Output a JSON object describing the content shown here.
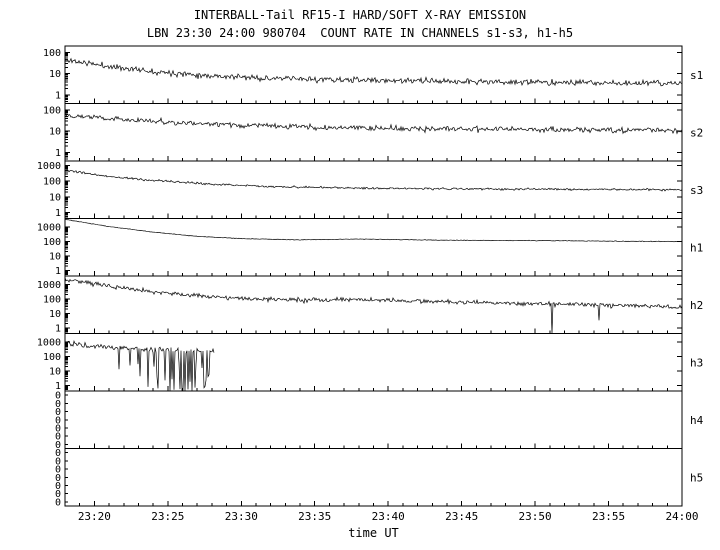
{
  "title": "INTERBALL-Tail RF15-I HARD/SOFT X-RAY EMISSION",
  "subtitle": "LBN 23:30 24:00 980704  COUNT RATE IN CHANNELS s1-s3, h1-h5",
  "xlabel": "time UT",
  "chart_data": {
    "type": "line",
    "title": "INTERBALL-Tail RF15-I HARD/SOFT X-RAY EMISSION",
    "subtitle": "LBN 23:30 24:00 980704  COUNT RATE IN CHANNELS s1-s3, h1-h5",
    "x_axis": {
      "label": "time UT",
      "start_time": "23:18",
      "end_time": "24:00",
      "total_minutes": 42,
      "ticks": [
        {
          "minute": 2,
          "label": "23:20"
        },
        {
          "minute": 7,
          "label": "23:25"
        },
        {
          "minute": 12,
          "label": "23:30"
        },
        {
          "minute": 17,
          "label": "23:35"
        },
        {
          "minute": 22,
          "label": "23:40"
        },
        {
          "minute": 27,
          "label": "23:45"
        },
        {
          "minute": 32,
          "label": "23:50"
        },
        {
          "minute": 37,
          "label": "23:55"
        },
        {
          "minute": 42,
          "label": "24:00"
        }
      ],
      "minor_tick_minutes": 1
    },
    "panels": [
      {
        "id": "s1",
        "label": "s1",
        "ylog": true,
        "ylim": [
          0.4,
          200
        ],
        "yticks": [
          {
            "v": 100,
            "label": "100"
          },
          {
            "v": 10,
            "label": "10"
          },
          {
            "v": 1,
            "label": "1"
          }
        ],
        "has_data": true,
        "t_end": 42,
        "seed": 11,
        "noise_dex": 0.1,
        "anchors": [
          [
            0,
            45
          ],
          [
            3,
            22
          ],
          [
            6,
            13
          ],
          [
            10,
            8
          ],
          [
            14,
            6
          ],
          [
            20,
            5
          ],
          [
            28,
            4.2
          ],
          [
            35,
            3.8
          ],
          [
            42,
            3.5
          ]
        ]
      },
      {
        "id": "s2",
        "label": "s2",
        "ylog": true,
        "ylim": [
          0.4,
          200
        ],
        "yticks": [
          {
            "v": 100,
            "label": "100"
          },
          {
            "v": 10,
            "label": "10"
          },
          {
            "v": 1,
            "label": "1"
          }
        ],
        "has_data": true,
        "t_end": 42,
        "seed": 22,
        "noise_dex": 0.09,
        "anchors": [
          [
            0,
            60
          ],
          [
            4,
            35
          ],
          [
            8,
            24
          ],
          [
            13,
            18
          ],
          [
            18,
            15
          ],
          [
            24,
            13
          ],
          [
            32,
            12
          ],
          [
            42,
            11
          ]
        ]
      },
      {
        "id": "s3",
        "label": "s3",
        "ylog": true,
        "ylim": [
          0.4,
          2000
        ],
        "yticks": [
          {
            "v": 1000,
            "label": "1000"
          },
          {
            "v": 100,
            "label": "100"
          },
          {
            "v": 10,
            "label": "10"
          },
          {
            "v": 1,
            "label": "1"
          }
        ],
        "has_data": true,
        "t_end": 42,
        "seed": 33,
        "noise_dex": 0.05,
        "anchors": [
          [
            0,
            500
          ],
          [
            3,
            200
          ],
          [
            6,
            110
          ],
          [
            10,
            65
          ],
          [
            14,
            45
          ],
          [
            20,
            36
          ],
          [
            28,
            32
          ],
          [
            35,
            30
          ],
          [
            42,
            28
          ]
        ]
      },
      {
        "id": "h1",
        "label": "h1",
        "ylog": true,
        "ylim": [
          0.4,
          4000
        ],
        "yticks": [
          {
            "v": 1000,
            "label": "1000"
          },
          {
            "v": 100,
            "label": "100"
          },
          {
            "v": 10,
            "label": "10"
          },
          {
            "v": 1,
            "label": "1"
          }
        ],
        "has_data": true,
        "t_end": 42,
        "seed": 44,
        "noise_dex": 0.015,
        "anchors": [
          [
            0,
            3500
          ],
          [
            3,
            1100
          ],
          [
            6,
            450
          ],
          [
            9,
            230
          ],
          [
            12,
            160
          ],
          [
            16,
            130
          ],
          [
            20,
            150
          ],
          [
            24,
            130
          ],
          [
            28,
            120
          ],
          [
            33,
            115
          ],
          [
            38,
            105
          ],
          [
            42,
            100
          ]
        ]
      },
      {
        "id": "h2",
        "label": "h2",
        "ylog": true,
        "ylim": [
          0.4,
          4000
        ],
        "yticks": [
          {
            "v": 1000,
            "label": "1000"
          },
          {
            "v": 100,
            "label": "100"
          },
          {
            "v": 10,
            "label": "10"
          },
          {
            "v": 1,
            "label": "1"
          }
        ],
        "has_data": true,
        "t_end": 42,
        "seed": 55,
        "noise_dex": 0.11,
        "spikes": {
          "start": 33,
          "end": 42,
          "p0": 0.015,
          "p1": 0.035,
          "depth": 2.2
        },
        "anchors": [
          [
            0,
            2500
          ],
          [
            3,
            800
          ],
          [
            6,
            320
          ],
          [
            9,
            170
          ],
          [
            12,
            110
          ],
          [
            16,
            85
          ],
          [
            20,
            95
          ],
          [
            24,
            70
          ],
          [
            28,
            55
          ],
          [
            33,
            45
          ],
          [
            38,
            35
          ],
          [
            42,
            28
          ]
        ]
      },
      {
        "id": "h3",
        "label": "h3",
        "ylog": true,
        "ylim": [
          0.4,
          4000
        ],
        "yticks": [
          {
            "v": 1000,
            "label": "1000"
          },
          {
            "v": 100,
            "label": "100"
          },
          {
            "v": 10,
            "label": "10"
          },
          {
            "v": 1,
            "label": "1"
          }
        ],
        "has_data": true,
        "t_end": 10.2,
        "seed": 66,
        "noise_dex": 0.13,
        "spikes": {
          "start": 3.2,
          "end": 10.2,
          "p0": 0.08,
          "p1": 0.6,
          "depth": 3.2
        },
        "anchors": [
          [
            0,
            900
          ],
          [
            2,
            550
          ],
          [
            4,
            400
          ],
          [
            6,
            320
          ],
          [
            8,
            260
          ],
          [
            10.2,
            220
          ]
        ]
      },
      {
        "id": "h4",
        "label": "h4",
        "ylog": false,
        "yticks_zero": [
          "0",
          "0",
          "0",
          "0",
          "0",
          "0",
          "0"
        ],
        "has_data": false
      },
      {
        "id": "h5",
        "label": "h5",
        "ylog": false,
        "yticks_zero": [
          "0",
          "0",
          "0",
          "0",
          "0",
          "0",
          "0"
        ],
        "has_data": false
      }
    ]
  }
}
